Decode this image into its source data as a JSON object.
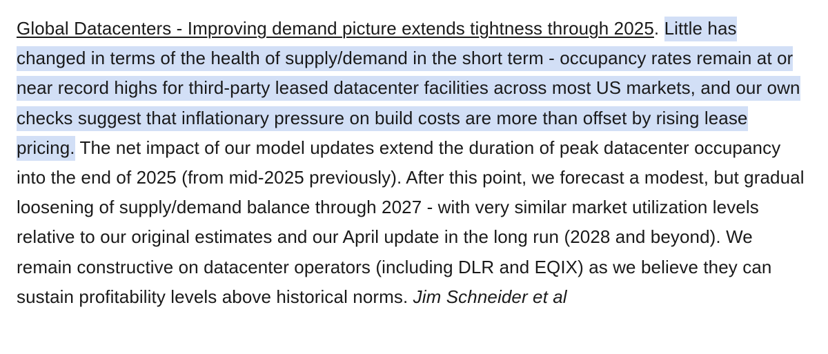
{
  "document": {
    "headline": "Global Datacenters - Improving demand picture extends tightness through 2025",
    "headline_suffix": ".",
    "highlighted_text": "Little has changed in terms of the health of supply/demand in the short term - occupancy rates remain at or near record highs for third-party leased datacenter facilities across most US markets, and our own checks suggest that inflationary pressure on build costs are more than offset by rising lease pricing.",
    "body_text": "The net impact of our model updates extend the duration of peak datacenter occupancy into the end of 2025 (from mid-2025 previously). After this point, we forecast a modest, but gradual loosening of supply/demand balance through 2027 - with very similar market utilization levels relative to our original estimates and our April update in the long run (2028 and beyond). We remain constructive on datacenter operators (including DLR and EQIX) as we believe they can sustain profitability levels above historical norms.",
    "attribution": "Jim Schneider et al"
  },
  "colors": {
    "text": "#1a1a1a",
    "highlight": "#d2dff6",
    "background": "#ffffff"
  }
}
